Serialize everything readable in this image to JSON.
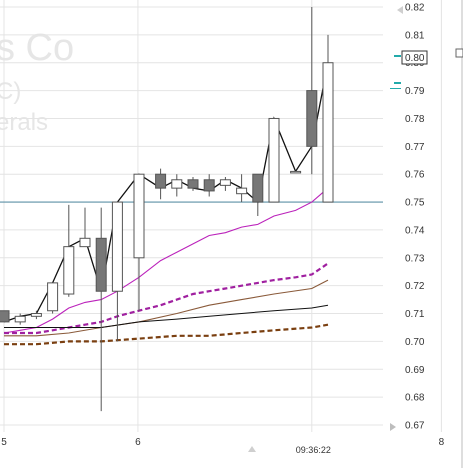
{
  "watermark": {
    "line1": "s Co",
    "line2": "C)",
    "line3": "erals"
  },
  "colors": {
    "grid": "#e4e4e4",
    "candle_up_fill": "#ffffff",
    "candle_down_fill": "#777777",
    "candle_stroke": "#555555",
    "close_line": "#111111",
    "ema_fast": "#bb22bb",
    "ema_mid_dashed": "#a020a0",
    "ema_slow": "#8a5a3a",
    "ema_slow_dashed": "#7a3f10",
    "sma_black": "#111111",
    "level_line": "#5f93a8",
    "last_price_marker": "#22aaaa"
  },
  "chart_data": {
    "type": "candlestick",
    "title": "",
    "xlabel": "",
    "ylabel": "",
    "ylim": [
      0.67,
      0.82
    ],
    "y_ticks": [
      "0.82",
      "0.81",
      "0.80",
      "0.79",
      "0.78",
      "0.77",
      "0.76",
      "0.75",
      "0.74",
      "0.73",
      "0.72",
      "0.71",
      "0.70",
      "0.69",
      "0.68",
      "0.67"
    ],
    "x_tick_labels": [
      {
        "label": "5",
        "x": 0
      },
      {
        "label": "6",
        "x": 12.4
      },
      {
        "label": "09:36:22",
        "x": 28.5
      },
      {
        "label": "8",
        "x": 40.5
      }
    ],
    "last_price_label": "0.80",
    "horizontal_level": 0.75,
    "candles": [
      {
        "x": 0.0,
        "open": 0.711,
        "high": 0.711,
        "low": 0.707,
        "close": 0.707
      },
      {
        "x": 1.5,
        "open": 0.707,
        "high": 0.71,
        "low": 0.706,
        "close": 0.709
      },
      {
        "x": 3.0,
        "open": 0.709,
        "high": 0.711,
        "low": 0.708,
        "close": 0.71
      },
      {
        "x": 4.5,
        "open": 0.711,
        "high": 0.721,
        "low": 0.71,
        "close": 0.721
      },
      {
        "x": 6.0,
        "open": 0.717,
        "high": 0.749,
        "low": 0.716,
        "close": 0.734
      },
      {
        "x": 7.5,
        "open": 0.734,
        "high": 0.748,
        "low": 0.734,
        "close": 0.737
      },
      {
        "x": 9.0,
        "open": 0.737,
        "high": 0.748,
        "low": 0.675,
        "close": 0.718
      },
      {
        "x": 10.5,
        "open": 0.718,
        "high": 0.75,
        "low": 0.7,
        "close": 0.75
      },
      {
        "x": 12.5,
        "open": 0.73,
        "high": 0.76,
        "low": 0.711,
        "close": 0.76
      },
      {
        "x": 14.5,
        "open": 0.76,
        "high": 0.762,
        "low": 0.751,
        "close": 0.755
      },
      {
        "x": 16.0,
        "open": 0.755,
        "high": 0.76,
        "low": 0.752,
        "close": 0.758
      },
      {
        "x": 17.5,
        "open": 0.758,
        "high": 0.759,
        "low": 0.754,
        "close": 0.755
      },
      {
        "x": 19.0,
        "open": 0.758,
        "high": 0.76,
        "low": 0.752,
        "close": 0.754
      },
      {
        "x": 20.5,
        "open": 0.756,
        "high": 0.759,
        "low": 0.754,
        "close": 0.758
      },
      {
        "x": 22.0,
        "open": 0.753,
        "high": 0.76,
        "low": 0.75,
        "close": 0.755
      },
      {
        "x": 23.5,
        "open": 0.76,
        "high": 0.76,
        "low": 0.745,
        "close": 0.75
      },
      {
        "x": 25.0,
        "open": 0.75,
        "high": 0.78,
        "low": 0.75,
        "close": 0.78
      },
      {
        "x": 27.0,
        "open": 0.761,
        "high": 0.761,
        "low": 0.761,
        "close": 0.761
      },
      {
        "x": 28.5,
        "open": 0.79,
        "high": 0.82,
        "low": 0.76,
        "close": 0.77
      },
      {
        "x": 30.0,
        "open": 0.75,
        "high": 0.81,
        "low": 0.75,
        "close": 0.8
      }
    ],
    "series": [
      {
        "key": "close_line",
        "style": "solid",
        "points": [
          [
            0.0,
            0.707
          ],
          [
            1.5,
            0.709
          ],
          [
            3.0,
            0.71
          ],
          [
            4.5,
            0.721
          ],
          [
            6.0,
            0.734
          ],
          [
            7.5,
            0.737
          ],
          [
            9.0,
            0.718
          ],
          [
            10.5,
            0.75
          ],
          [
            12.5,
            0.76
          ],
          [
            14.5,
            0.755
          ],
          [
            16.0,
            0.758
          ],
          [
            17.5,
            0.755
          ],
          [
            19.0,
            0.754
          ],
          [
            20.5,
            0.758
          ],
          [
            22.0,
            0.755
          ],
          [
            23.5,
            0.75
          ],
          [
            25.0,
            0.78
          ],
          [
            27.0,
            0.761
          ],
          [
            28.5,
            0.77
          ],
          [
            30.0,
            0.8
          ]
        ]
      },
      {
        "key": "ema_fast",
        "style": "solid",
        "points": [
          [
            0.0,
            0.703
          ],
          [
            1.5,
            0.704
          ],
          [
            3.0,
            0.705
          ],
          [
            4.5,
            0.708
          ],
          [
            6.0,
            0.712
          ],
          [
            7.5,
            0.714
          ],
          [
            9.0,
            0.715
          ],
          [
            10.5,
            0.718
          ],
          [
            12.5,
            0.723
          ],
          [
            14.5,
            0.729
          ],
          [
            16.0,
            0.732
          ],
          [
            17.5,
            0.735
          ],
          [
            19.0,
            0.738
          ],
          [
            20.5,
            0.739
          ],
          [
            22.0,
            0.741
          ],
          [
            23.5,
            0.742
          ],
          [
            25.0,
            0.745
          ],
          [
            27.0,
            0.747
          ],
          [
            28.5,
            0.75
          ],
          [
            30.0,
            0.755
          ]
        ]
      },
      {
        "key": "ema_mid_dashed",
        "style": "dashed",
        "points": [
          [
            0.0,
            0.703
          ],
          [
            1.5,
            0.703
          ],
          [
            3.0,
            0.703
          ],
          [
            4.5,
            0.704
          ],
          [
            6.0,
            0.705
          ],
          [
            7.5,
            0.706
          ],
          [
            9.0,
            0.707
          ],
          [
            10.5,
            0.709
          ],
          [
            12.5,
            0.711
          ],
          [
            14.5,
            0.713
          ],
          [
            16.0,
            0.715
          ],
          [
            17.5,
            0.717
          ],
          [
            19.0,
            0.718
          ],
          [
            20.5,
            0.719
          ],
          [
            22.0,
            0.72
          ],
          [
            23.5,
            0.721
          ],
          [
            25.0,
            0.722
          ],
          [
            27.0,
            0.723
          ],
          [
            28.5,
            0.724
          ],
          [
            30.0,
            0.728
          ]
        ]
      },
      {
        "key": "ema_slow",
        "style": "solid",
        "points": [
          [
            0.0,
            0.702
          ],
          [
            3.0,
            0.702
          ],
          [
            6.0,
            0.703
          ],
          [
            9.0,
            0.705
          ],
          [
            12.5,
            0.707
          ],
          [
            16.0,
            0.71
          ],
          [
            19.0,
            0.713
          ],
          [
            22.0,
            0.715
          ],
          [
            25.0,
            0.717
          ],
          [
            28.5,
            0.719
          ],
          [
            30.0,
            0.722
          ]
        ]
      },
      {
        "key": "sma_black",
        "style": "solid",
        "points": [
          [
            0.0,
            0.705
          ],
          [
            4.5,
            0.705
          ],
          [
            9.0,
            0.705
          ],
          [
            12.5,
            0.707
          ],
          [
            16.0,
            0.708
          ],
          [
            19.0,
            0.709
          ],
          [
            22.0,
            0.71
          ],
          [
            25.0,
            0.711
          ],
          [
            28.5,
            0.712
          ],
          [
            30.0,
            0.713
          ]
        ]
      },
      {
        "key": "ema_slow_dashed",
        "style": "dashed",
        "points": [
          [
            0.0,
            0.699
          ],
          [
            3.0,
            0.699
          ],
          [
            6.0,
            0.7
          ],
          [
            9.0,
            0.7
          ],
          [
            12.5,
            0.701
          ],
          [
            16.0,
            0.702
          ],
          [
            19.0,
            0.702
          ],
          [
            22.0,
            0.703
          ],
          [
            25.0,
            0.704
          ],
          [
            28.5,
            0.705
          ],
          [
            30.0,
            0.706
          ]
        ]
      }
    ]
  }
}
